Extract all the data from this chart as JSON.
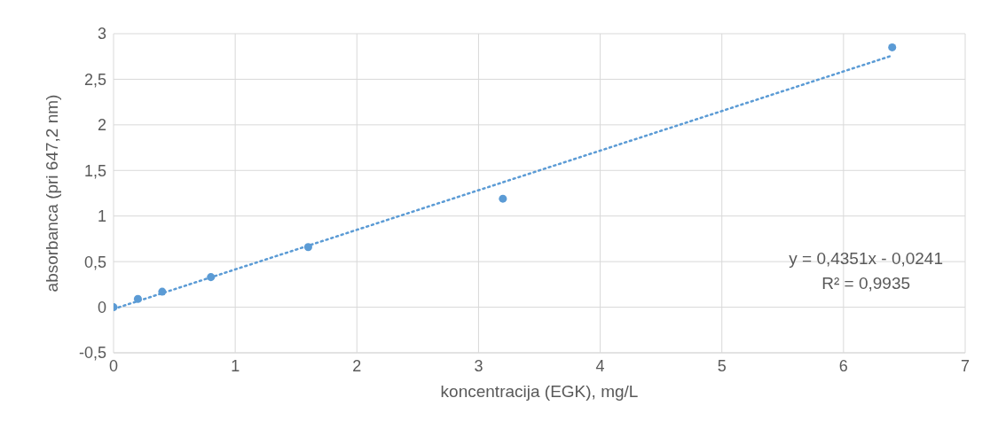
{
  "chart_data": {
    "type": "scatter",
    "xlabel": "koncentracija (EGK), mg/L",
    "ylabel": "absorbanca (pri 647,2 nm)",
    "series": [
      {
        "type": "scatter",
        "color": "#5b9bd5",
        "marker": "circle",
        "x": [
          0,
          0.2,
          0.4,
          0.8,
          1.6,
          3.2,
          6.4
        ],
        "values": [
          0,
          0.09,
          0.17,
          0.33,
          0.66,
          1.19,
          2.85
        ]
      },
      {
        "type": "line",
        "color": "#5b9bd5",
        "marker": "none",
        "line_style": "dotted",
        "x": [
          0,
          6.4
        ],
        "values": [
          -0.02,
          2.76
        ]
      }
    ],
    "xlim": [
      0,
      7
    ],
    "xticks": [
      0,
      1,
      2,
      3,
      4,
      5,
      6,
      7
    ],
    "ylim": [
      -0.5,
      3
    ],
    "yticks": [
      {
        "value": -0.5,
        "label": "-0,5"
      },
      0,
      {
        "value": 0.5,
        "label": "0,5"
      },
      1,
      {
        "value": 1.5,
        "label": "1,5"
      },
      2,
      {
        "value": 2.5,
        "label": "2,5"
      },
      3
    ],
    "grid": true,
    "annotations": [
      "y = 0,4351x - 0,0241",
      "R² = 0,9935"
    ]
  }
}
